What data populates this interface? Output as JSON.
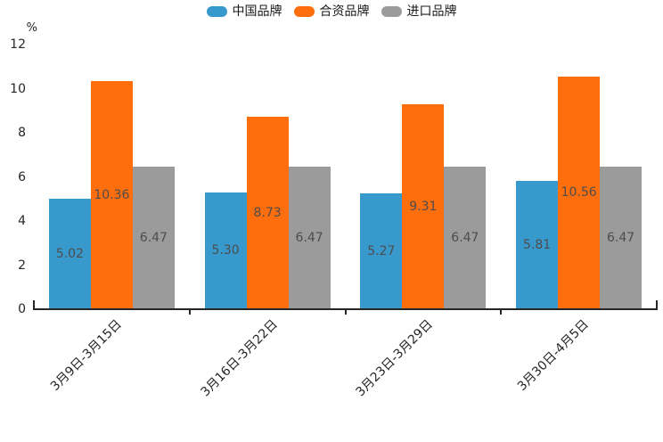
{
  "chart_data": {
    "type": "bar",
    "title": "",
    "ylabel": "%",
    "xlabel": "",
    "categories": [
      "3月9日-3月15日",
      "3月16日-3月22日",
      "3月23日-3月29日",
      "3月30日-4月5日"
    ],
    "series": [
      {
        "name": "中国品牌",
        "color": "#3899cc",
        "values": [
          5.02,
          5.3,
          5.27,
          5.81
        ]
      },
      {
        "name": "合资品牌",
        "color": "#ff6e0c",
        "values": [
          10.36,
          8.73,
          9.31,
          10.56
        ]
      },
      {
        "name": "进口品牌",
        "color": "#9b9b9b",
        "values": [
          6.47,
          6.47,
          6.47,
          6.47
        ]
      }
    ],
    "value_labels_decimals": 2,
    "value_label_color": "#4d4d4d",
    "ylim": [
      0,
      12
    ],
    "yticks": [
      0,
      2,
      4,
      6,
      8,
      10,
      12
    ],
    "grid": false,
    "legend_position": "top-center",
    "x_label_rotation_deg": 45
  }
}
